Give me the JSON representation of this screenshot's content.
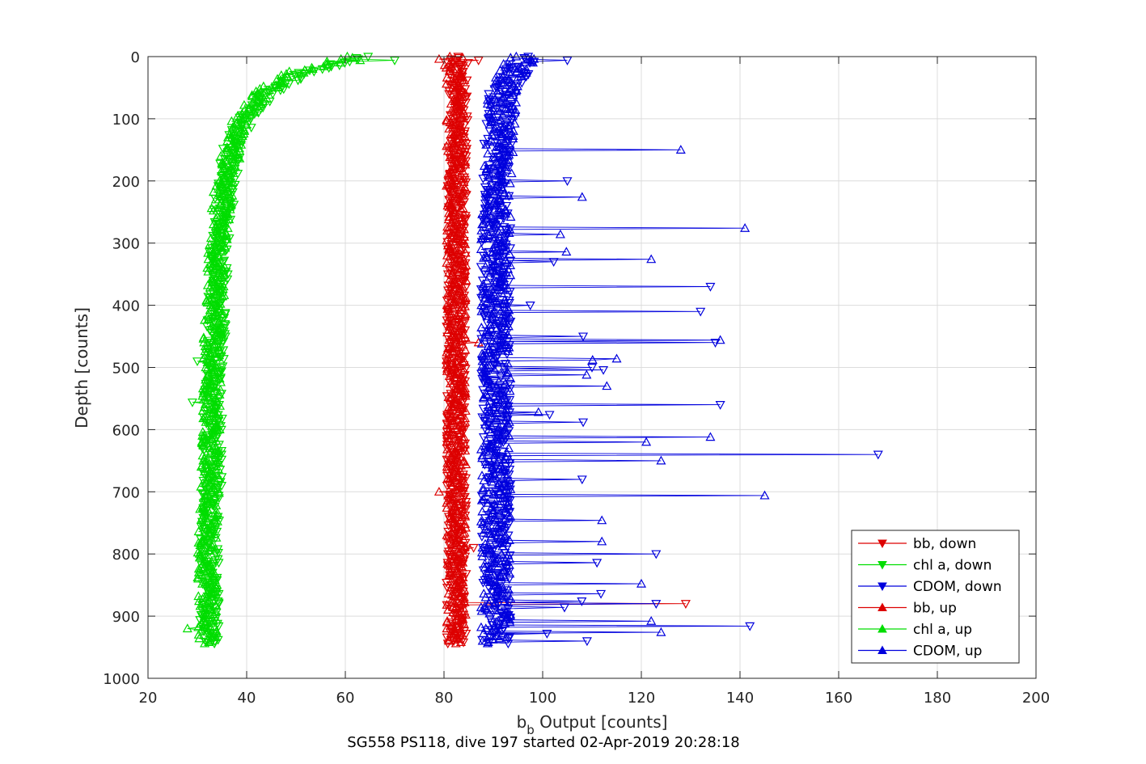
{
  "chart_data": {
    "type": "line",
    "title": "",
    "caption": "SG558 PS118, dive 197 started 02-Apr-2019 20:28:18",
    "xlabel_main": "b",
    "xlabel_sub": "b",
    "xlabel_rest": " Output [counts]",
    "ylabel": "Depth [counts]",
    "xlim": [
      20,
      200
    ],
    "ylim": [
      0,
      1000
    ],
    "y_reversed": true,
    "grid": true,
    "x_ticks": [
      "20",
      "40",
      "60",
      "80",
      "100",
      "120",
      "140",
      "160",
      "180",
      "200"
    ],
    "y_ticks": [
      "0",
      "100",
      "200",
      "300",
      "400",
      "500",
      "600",
      "700",
      "800",
      "900",
      "1000"
    ],
    "legend_position": "bottom-right",
    "legend": [
      {
        "label": "bb, down",
        "color": "#dd0000",
        "marker": "down"
      },
      {
        "label": "chl a, down",
        "color": "#00dd00",
        "marker": "down"
      },
      {
        "label": "CDOM, down",
        "color": "#0000dd",
        "marker": "down"
      },
      {
        "label": "bb, up",
        "color": "#dd0000",
        "marker": "up"
      },
      {
        "label": "chl a, up",
        "color": "#00dd00",
        "marker": "up"
      },
      {
        "label": "CDOM, up",
        "color": "#0000dd",
        "marker": "up"
      }
    ],
    "series": [
      {
        "name": "bb, down",
        "color": "#dd0000",
        "marker": "down",
        "base": [
          [
            0,
            83
          ],
          [
            100,
            83
          ],
          [
            300,
            82.5
          ],
          [
            500,
            82.5
          ],
          [
            700,
            82.5
          ],
          [
            945,
            82.5
          ]
        ],
        "jitter": 2,
        "spikes": [
          [
            5,
            87
          ],
          [
            790,
            86
          ],
          [
            880,
            129
          ]
        ]
      },
      {
        "name": "chl a, down",
        "color": "#00dd00",
        "marker": "down",
        "base": [
          [
            0,
            64
          ],
          [
            25,
            52
          ],
          [
            60,
            44
          ],
          [
            100,
            40
          ],
          [
            150,
            37
          ],
          [
            200,
            36
          ],
          [
            300,
            34.5
          ],
          [
            400,
            34
          ],
          [
            500,
            33.5
          ],
          [
            600,
            33
          ],
          [
            700,
            33
          ],
          [
            800,
            32.5
          ],
          [
            945,
            32.5
          ]
        ],
        "jitter": 2,
        "spikes": [
          [
            5,
            70
          ],
          [
            555,
            29
          ],
          [
            490,
            30
          ]
        ]
      },
      {
        "name": "CDOM, down",
        "color": "#0000dd",
        "marker": "down",
        "base": [
          [
            0,
            97
          ],
          [
            50,
            92
          ],
          [
            150,
            91
          ],
          [
            300,
            90.5
          ],
          [
            500,
            90.5
          ],
          [
            700,
            90.5
          ],
          [
            945,
            90.5
          ]
        ],
        "jitter": 3,
        "spikes": [
          [
            5,
            105
          ],
          [
            200,
            105
          ],
          [
            370,
            134
          ],
          [
            410,
            132
          ],
          [
            460,
            135
          ],
          [
            500,
            110
          ],
          [
            560,
            136
          ],
          [
            640,
            168
          ],
          [
            680,
            108
          ],
          [
            800,
            123
          ],
          [
            880,
            123
          ],
          [
            915,
            142
          ],
          [
            940,
            109
          ]
        ]
      },
      {
        "name": "bb, up",
        "color": "#dd0000",
        "marker": "up",
        "base": [
          [
            0,
            82
          ],
          [
            100,
            82.5
          ],
          [
            300,
            82.5
          ],
          [
            500,
            82.5
          ],
          [
            700,
            82.5
          ],
          [
            945,
            82.5
          ]
        ],
        "jitter": 2,
        "spikes": [
          [
            3,
            79
          ],
          [
            460,
            87
          ],
          [
            700,
            79
          ]
        ]
      },
      {
        "name": "chl a, up",
        "color": "#00dd00",
        "marker": "up",
        "base": [
          [
            0,
            62
          ],
          [
            25,
            50
          ],
          [
            60,
            43
          ],
          [
            100,
            39
          ],
          [
            150,
            37
          ],
          [
            200,
            35.5
          ],
          [
            300,
            34
          ],
          [
            400,
            33.5
          ],
          [
            500,
            33
          ],
          [
            600,
            33
          ],
          [
            700,
            32.5
          ],
          [
            800,
            32
          ],
          [
            945,
            32
          ]
        ],
        "jitter": 2,
        "spikes": [
          [
            920,
            28
          ],
          [
            5,
            63
          ]
        ]
      },
      {
        "name": "CDOM, up",
        "color": "#0000dd",
        "marker": "up",
        "base": [
          [
            0,
            96
          ],
          [
            50,
            92
          ],
          [
            150,
            91
          ],
          [
            300,
            90.5
          ],
          [
            500,
            90.5
          ],
          [
            700,
            90.5
          ],
          [
            945,
            90.5
          ]
        ],
        "jitter": 3,
        "spikes": [
          [
            150,
            128
          ],
          [
            225,
            108
          ],
          [
            275,
            141
          ],
          [
            325,
            122
          ],
          [
            455,
            136
          ],
          [
            485,
            115
          ],
          [
            530,
            113
          ],
          [
            612,
            134
          ],
          [
            620,
            121
          ],
          [
            650,
            124
          ],
          [
            705,
            145
          ],
          [
            745,
            112
          ],
          [
            780,
            112
          ],
          [
            848,
            120
          ],
          [
            908,
            122
          ],
          [
            925,
            124
          ]
        ]
      }
    ]
  }
}
